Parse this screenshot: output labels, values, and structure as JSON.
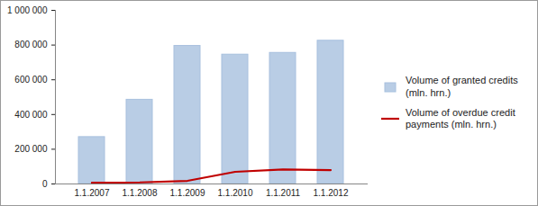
{
  "chart_data": {
    "type": "bar",
    "categories": [
      "1.1.2007",
      "1.1.2008",
      "1.1.2009",
      "1.1.2010",
      "1.1.2011",
      "1.1.2012"
    ],
    "series": [
      {
        "name": "Volume of granted credits (mln. hrn.)",
        "type": "bar",
        "color": "#b9cde5",
        "values": [
          270000,
          485000,
          795000,
          745000,
          755000,
          825000
        ]
      },
      {
        "name": "Volume of overdue credit payments (mln. hrn.)",
        "type": "line",
        "color": "#c00000",
        "values": [
          7000,
          9000,
          18000,
          70000,
          84000,
          80000
        ]
      }
    ],
    "ylim": [
      0,
      1000000
    ],
    "yticks": [
      0,
      {
        "value": 200000,
        "label": "200 000"
      },
      {
        "value": 400000,
        "label": "400 000"
      },
      {
        "value": 600000,
        "label": "600 000"
      },
      {
        "value": 800000,
        "label": "800 000"
      },
      {
        "value": 1000000,
        "label": "1 000 000"
      }
    ],
    "grid": false,
    "legend": "right"
  }
}
